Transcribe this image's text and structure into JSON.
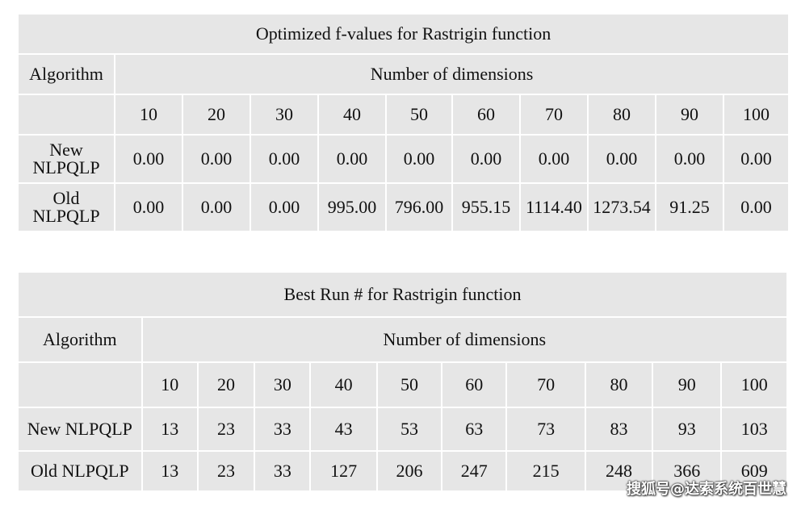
{
  "table1": {
    "title": "Optimized f-values for Rastrigin function",
    "algorithm_header": "Algorithm",
    "dimensions_header": "Number of dimensions",
    "dimensions": [
      "10",
      "20",
      "30",
      "40",
      "50",
      "60",
      "70",
      "80",
      "90",
      "100"
    ],
    "rows": [
      {
        "label": "New NLPQLP",
        "values": [
          "0.00",
          "0.00",
          "0.00",
          "0.00",
          "0.00",
          "0.00",
          "0.00",
          "0.00",
          "0.00",
          "0.00"
        ]
      },
      {
        "label": "Old NLPQLP",
        "values": [
          "0.00",
          "0.00",
          "0.00",
          "995.00",
          "796.00",
          "955.15",
          "1114.40",
          "1273.54",
          "91.25",
          "0.00"
        ]
      }
    ]
  },
  "table2": {
    "title": "Best Run # for Rastrigin function",
    "algorithm_header": "Algorithm",
    "dimensions_header": "Number of dimensions",
    "dimensions": [
      "10",
      "20",
      "30",
      "40",
      "50",
      "60",
      "70",
      "80",
      "90",
      "100"
    ],
    "rows": [
      {
        "label": "New NLPQLP",
        "values": [
          "13",
          "23",
          "33",
          "43",
          "53",
          "63",
          "73",
          "83",
          "93",
          "103"
        ]
      },
      {
        "label": "Old NLPQLP",
        "values": [
          "13",
          "23",
          "33",
          "127",
          "206",
          "247",
          "215",
          "248",
          "366",
          "609"
        ]
      }
    ]
  },
  "watermark": "搜狐号@达索系统百世慧"
}
